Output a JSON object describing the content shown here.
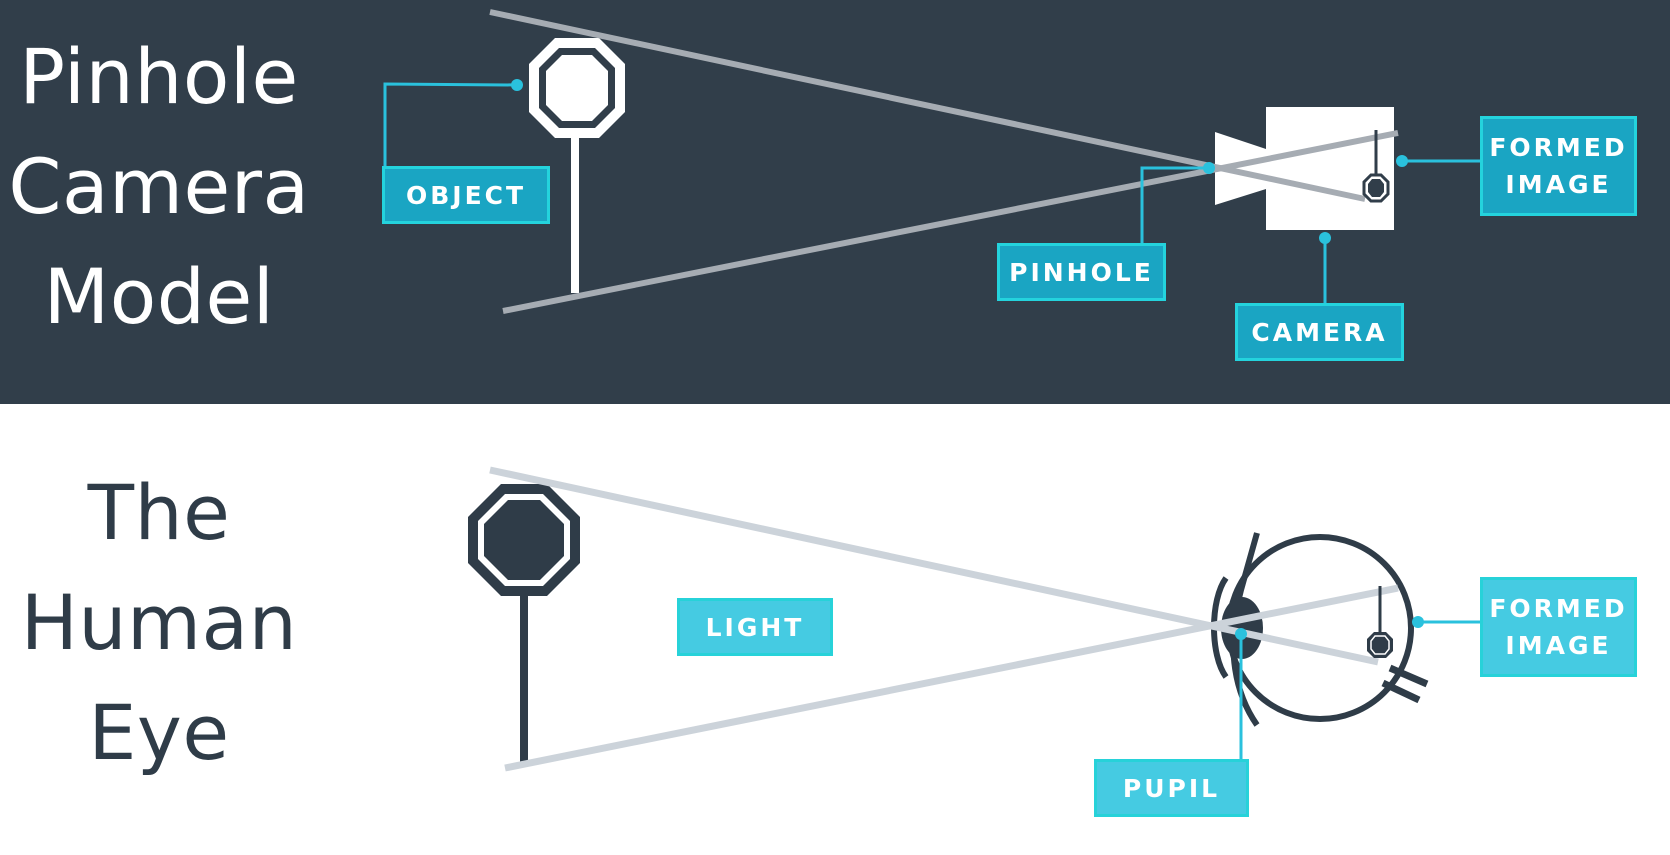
{
  "colors": {
    "top_background": "#313e4a",
    "bottom_background": "#ffffff",
    "top_title_text": "#ffffff",
    "bottom_title_text": "#2f3c48",
    "dark_callout_fill": "#1aa5c3",
    "dark_callout_border": "#24d3dd",
    "light_callout_fill": "#45cbe2",
    "light_callout_border": "#27d2d9",
    "leader_line": "#2ac1dd",
    "top_ray": "#a6acb3",
    "bottom_ray": "#ccd3da",
    "top_sign": "#ffffff",
    "bottom_sign": "#2f3c48"
  },
  "pinhole_section": {
    "title_lines": [
      "Pinhole",
      "Camera",
      "Model"
    ],
    "labels": {
      "object": "OBJECT",
      "pinhole": "PINHOLE",
      "camera": "CAMERA",
      "formed_image": [
        "FORMED",
        "IMAGE"
      ]
    }
  },
  "eye_section": {
    "title_lines": [
      "The",
      "Human",
      "Eye"
    ],
    "labels": {
      "light": "LIGHT",
      "pupil": "PUPIL",
      "formed_image": [
        "FORMED",
        "IMAGE"
      ]
    }
  },
  "icons": [
    "stop-sign-icon",
    "camera-icon",
    "eye-icon"
  ]
}
